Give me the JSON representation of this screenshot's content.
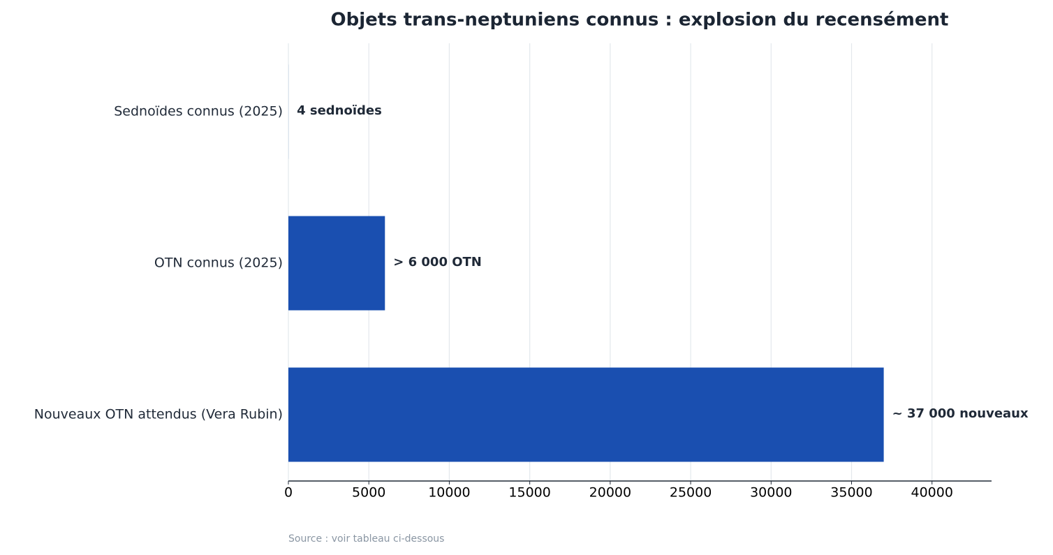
{
  "chart_data": {
    "type": "barh",
    "title": "Objets trans-neptuniens connus : explosion du recensément",
    "categories": [
      "Sednoïdes connus (2025)",
      "OTN connus (2025)",
      "Nouveaux OTN attendus (Vera Rubin)"
    ],
    "values": [
      4,
      6000,
      37000
    ],
    "value_labels": [
      "4 sednoïdes",
      "> 6 000 OTN",
      "~ 37 000 nouveaux"
    ],
    "color": "#1a4fb0",
    "xlim": [
      0,
      43700
    ],
    "xticks": [
      0,
      5000,
      10000,
      15000,
      20000,
      25000,
      30000,
      35000,
      40000
    ],
    "grid": true,
    "source": "Source : voir tableau ci-dessous"
  }
}
